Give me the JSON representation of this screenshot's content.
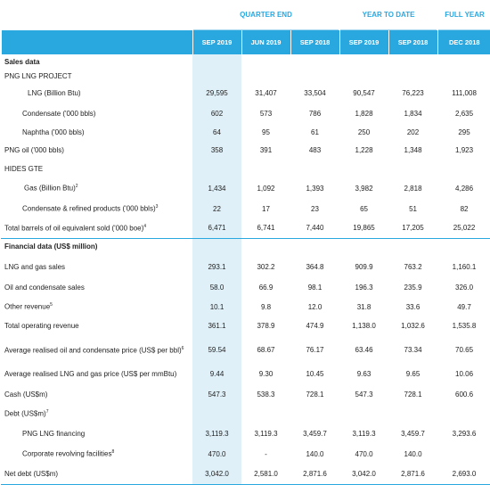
{
  "table": {
    "groups": [
      {
        "label": "QUARTER END",
        "span": 3
      },
      {
        "label": "YEAR TO DATE",
        "span": 2
      },
      {
        "label": "FULL YEAR",
        "span": 1
      }
    ],
    "columns": [
      "SEP 2019",
      "JUN 2019",
      "SEP 2018",
      "SEP 2019",
      "SEP 2018",
      "DEC 2018"
    ],
    "rows": [
      {
        "label": "Sales data",
        "values": []
      },
      {
        "label": "PNG LNG PROJECT",
        "values": []
      },
      {
        "label": "LNG (Billion Btu)",
        "values": [
          "29,595",
          "31,407",
          "33,504",
          "90,547",
          "76,223",
          "111,008"
        ]
      },
      {
        "label": "Condensate ('000 bbls)",
        "values": [
          "602",
          "573",
          "786",
          "1,828",
          "1,834",
          "2,635"
        ]
      },
      {
        "label": "Naphtha ('000 bbls)",
        "values": [
          "64",
          "95",
          "61",
          "250",
          "202",
          "295"
        ]
      },
      {
        "label": "PNG oil ('000 bbls)",
        "values": [
          "358",
          "391",
          "483",
          "1,228",
          "1,348",
          "1,923"
        ]
      },
      {
        "label": "HIDES GTE",
        "values": []
      },
      {
        "label": "Gas (Billion Btu)",
        "note": "2",
        "values": [
          "1,434",
          "1,092",
          "1,393",
          "3,982",
          "2,818",
          "4,286"
        ]
      },
      {
        "label": "Condensate & refined products ('000 bbls)",
        "note": "3",
        "values": [
          "22",
          "17",
          "23",
          "65",
          "51",
          "82"
        ]
      },
      {
        "label": "Total barrels of oil equivalent sold ('000 boe)",
        "note": "4",
        "values": [
          "6,471",
          "6,741",
          "7,440",
          "19,865",
          "17,205",
          "25,022"
        ]
      },
      {
        "label": "Financial data (US$ million)",
        "values": []
      },
      {
        "label": "LNG and gas sales",
        "values": [
          "293.1",
          "302.2",
          "364.8",
          "909.9",
          "763.2",
          "1,160.1"
        ]
      },
      {
        "label": "Oil and condensate sales",
        "values": [
          "58.0",
          "66.9",
          "98.1",
          "196.3",
          "235.9",
          "326.0"
        ]
      },
      {
        "label": "Other revenue",
        "note": "5",
        "values": [
          "10.1",
          "9.8",
          "12.0",
          "31.8",
          "33.6",
          "49.7"
        ]
      },
      {
        "label": "Total operating revenue",
        "values": [
          "361.1",
          "378.9",
          "474.9",
          "1,138.0",
          "1,032.6",
          "1,535.8"
        ]
      },
      {
        "label": "Average realised oil and condensate price (US$ per bbl)",
        "note": "6",
        "values": [
          "59.54",
          "68.67",
          "76.17",
          "63.46",
          "73.34",
          "70.65"
        ]
      },
      {
        "label": "Average realised LNG and gas price (US$ per mmBtu)",
        "values": [
          "9.44",
          "9.30",
          "10.45",
          "9.63",
          "9.65",
          "10.06"
        ]
      },
      {
        "label": "Cash (US$m)",
        "values": [
          "547.3",
          "538.3",
          "728.1",
          "547.3",
          "728.1",
          "600.6"
        ]
      },
      {
        "label": "Debt (US$m)",
        "note": "7",
        "values": []
      },
      {
        "label": "PNG LNG financing",
        "values": [
          "3,119.3",
          "3,119.3",
          "3,459.7",
          "3,119.3",
          "3,459.7",
          "3,293.6"
        ]
      },
      {
        "label": "Corporate revolving facilities",
        "note": "8",
        "values": [
          "470.0",
          "-",
          "140.0",
          "470.0",
          "140.0",
          null
        ]
      },
      {
        "label": "Net debt (US$m)",
        "values": [
          "3,042.0",
          "2,581.0",
          "2,871.6",
          "3,042.0",
          "2,871.6",
          "2,693.0"
        ]
      }
    ]
  }
}
